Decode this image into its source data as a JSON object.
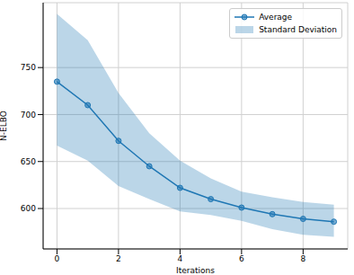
{
  "chart_data": {
    "type": "line",
    "x_label": "Iterations",
    "y_label": "N-ELBO",
    "x": [
      0,
      1,
      2,
      3,
      4,
      5,
      6,
      7,
      8,
      9
    ],
    "series": [
      {
        "name": "Average",
        "color": "#1f77b4",
        "marker": "o",
        "values": [
          735,
          710,
          672,
          645,
          622,
          610,
          601,
          594,
          589,
          586
        ]
      },
      {
        "name": "Standard Deviation",
        "type": "band",
        "color": "#1f77b4",
        "lower": [
          667,
          651,
          624,
          610,
          597,
          593,
          587,
          578,
          572,
          570
        ],
        "upper": [
          807,
          779,
          723,
          680,
          651,
          632,
          618,
          612,
          607,
          604
        ]
      }
    ],
    "xlim": [
      -0.45,
      9.45
    ],
    "ylim": [
      557,
      819
    ],
    "xticks": [
      0,
      2,
      4,
      6,
      8
    ],
    "yticks": [
      600,
      650,
      700,
      750
    ],
    "grid": true,
    "legend": "upper right"
  }
}
